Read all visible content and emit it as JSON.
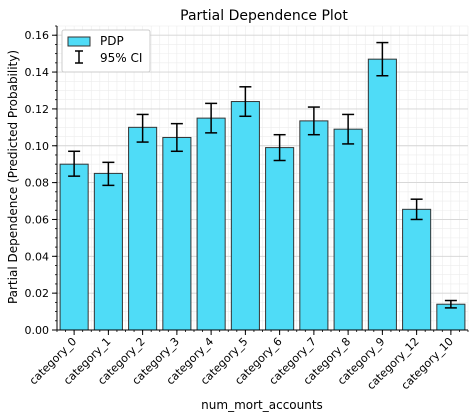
{
  "chart_data": {
    "type": "bar",
    "title": "Partial Dependence Plot",
    "xlabel": "num_mort_accounts",
    "ylabel": "Partial Dependence (Predicted Probability)",
    "categories": [
      "category_0",
      "category_1",
      "category_2",
      "category_3",
      "category_4",
      "category_5",
      "category_6",
      "category_7",
      "category_8",
      "category_9",
      "category_12",
      "category_10"
    ],
    "values": [
      0.09,
      0.085,
      0.11,
      0.1045,
      0.115,
      0.124,
      0.099,
      0.1135,
      0.109,
      0.147,
      0.0655,
      0.014
    ],
    "ci_low": [
      0.0835,
      0.0785,
      0.102,
      0.097,
      0.107,
      0.116,
      0.092,
      0.106,
      0.101,
      0.138,
      0.06,
      0.012
    ],
    "ci_high": [
      0.097,
      0.091,
      0.117,
      0.112,
      0.123,
      0.132,
      0.106,
      0.121,
      0.117,
      0.156,
      0.071,
      0.016
    ],
    "ylim": [
      0,
      0.165
    ],
    "yticks": [
      "0.00",
      "0.02",
      "0.04",
      "0.06",
      "0.08",
      "0.10",
      "0.12",
      "0.14",
      "0.16"
    ],
    "ytick_values": [
      0,
      0.02,
      0.04,
      0.06,
      0.08,
      0.1,
      0.12,
      0.14,
      0.16
    ],
    "grid": true,
    "legend_position": "top-left",
    "legend": {
      "bars_label": "PDP",
      "ci_label": "95% CI"
    },
    "colors": {
      "bar_fill": "#4fdcf7",
      "bar_edge": "#333333",
      "error_bar": "#000000",
      "grid": "#d9d9d9"
    }
  }
}
